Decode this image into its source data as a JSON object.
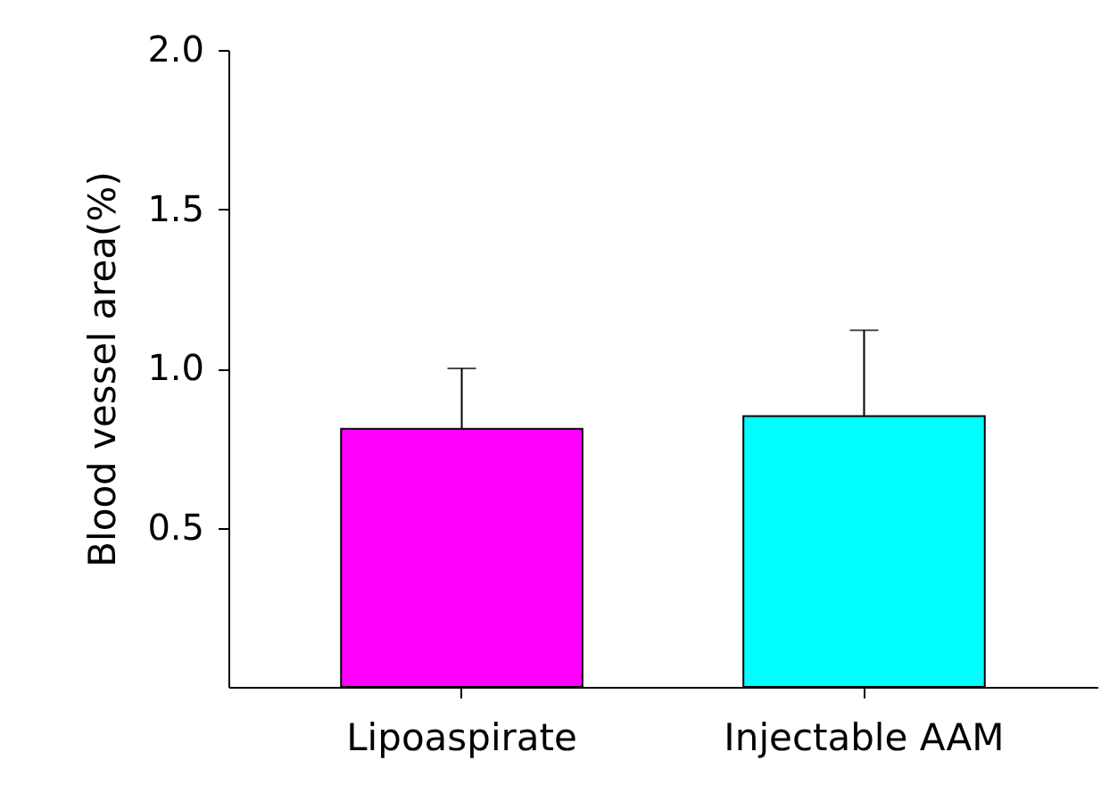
{
  "chart_data": {
    "type": "bar",
    "ylabel": "Blood vessel area(%)",
    "categories": [
      "Lipoaspirate",
      "Injectable AAM"
    ],
    "values": [
      0.81,
      0.85
    ],
    "colors": [
      "#ff00ff",
      "#00ffff"
    ],
    "errors": [
      [
        0.81,
        1.0
      ],
      [
        0.85,
        1.12
      ]
    ],
    "ylim": [
      0,
      2.0
    ],
    "yticks": [
      {
        "value": 0.5,
        "label": "0.5"
      },
      {
        "value": 1.0,
        "label": "1.0"
      },
      {
        "value": 1.5,
        "label": "1.5"
      },
      {
        "value": 2.0,
        "label": "2.0"
      }
    ],
    "grid": false,
    "legend": false
  }
}
